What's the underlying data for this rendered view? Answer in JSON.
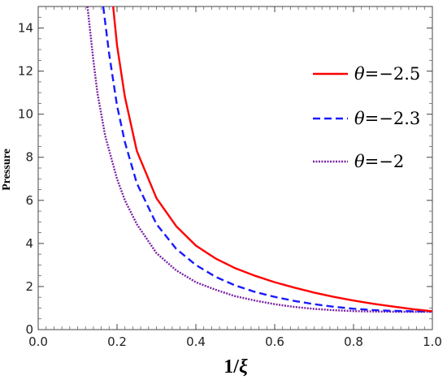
{
  "chart_data": {
    "type": "line",
    "title": "",
    "xlabel_number": "1/",
    "xlabel_symbol": "ξ",
    "ylabel": "Pressure",
    "xlim": [
      0.0,
      1.0
    ],
    "ylim": [
      0,
      15
    ],
    "x_ticks": [
      "0.0",
      "0.2",
      "0.4",
      "0.6",
      "0.8",
      "1.0"
    ],
    "y_ticks": [
      "0",
      "2",
      "4",
      "6",
      "8",
      "10",
      "12",
      "14"
    ],
    "grid": false,
    "legend_position": "top-right",
    "series": [
      {
        "name_symbol": "θ",
        "name_value": "=−2.5",
        "color": "#ff0000",
        "dash": "solid",
        "x": [
          0.19,
          0.2,
          0.22,
          0.25,
          0.3,
          0.35,
          0.4,
          0.45,
          0.5,
          0.55,
          0.6,
          0.65,
          0.7,
          0.75,
          0.8,
          0.85,
          0.9,
          0.95,
          1.0
        ],
        "y": [
          15.0,
          13.2,
          10.8,
          8.3,
          6.1,
          4.8,
          3.9,
          3.3,
          2.85,
          2.5,
          2.2,
          1.95,
          1.72,
          1.52,
          1.35,
          1.2,
          1.07,
          0.95,
          0.85
        ]
      },
      {
        "name_symbol": "θ",
        "name_value": "=−2.3",
        "color": "#1a1aff",
        "dash": "dashed",
        "x": [
          0.165,
          0.18,
          0.2,
          0.22,
          0.25,
          0.3,
          0.35,
          0.4,
          0.45,
          0.5,
          0.55,
          0.6,
          0.65,
          0.7,
          0.75,
          0.8,
          0.85,
          0.9,
          0.95,
          1.0
        ],
        "y": [
          15.0,
          12.8,
          10.4,
          8.7,
          6.8,
          4.9,
          3.75,
          3.0,
          2.45,
          2.05,
          1.75,
          1.52,
          1.33,
          1.18,
          1.06,
          0.97,
          0.91,
          0.87,
          0.85,
          0.84
        ]
      },
      {
        "name_symbol": "θ",
        "name_value": "=−2",
        "color": "#7a1fa2",
        "dash": "dotted",
        "x": [
          0.125,
          0.14,
          0.15,
          0.17,
          0.2,
          0.22,
          0.25,
          0.3,
          0.35,
          0.4,
          0.45,
          0.5,
          0.55,
          0.6,
          0.65,
          0.7,
          0.75,
          0.8,
          0.85,
          0.9,
          0.95,
          1.0
        ],
        "y": [
          15.0,
          12.5,
          11.0,
          9.0,
          7.0,
          6.0,
          4.9,
          3.55,
          2.75,
          2.2,
          1.85,
          1.55,
          1.35,
          1.18,
          1.05,
          0.96,
          0.9,
          0.86,
          0.84,
          0.83,
          0.83,
          0.83
        ]
      }
    ]
  }
}
